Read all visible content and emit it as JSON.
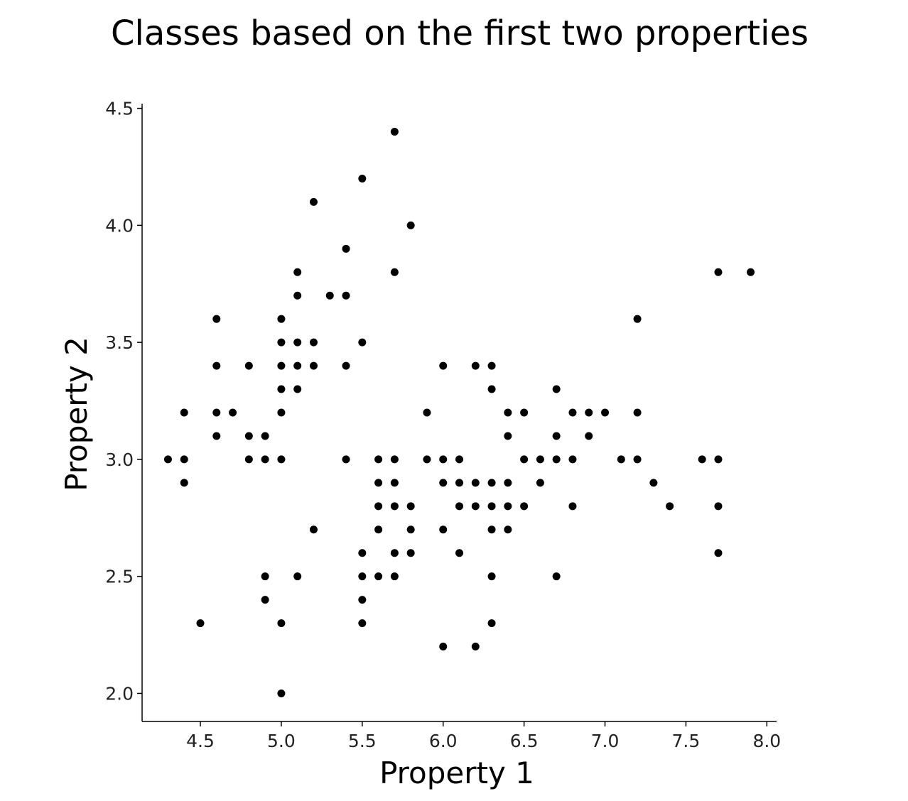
{
  "chart_data": {
    "type": "scatter",
    "title": "Classes based on the first two properties",
    "xlabel": "Property 1",
    "ylabel": "Property 2",
    "xlim": [
      4.14,
      8.06
    ],
    "ylim": [
      1.88,
      4.52
    ],
    "xticks": [
      "4.5",
      "5.0",
      "5.5",
      "6.0",
      "6.5",
      "7.0",
      "7.5",
      "8.0"
    ],
    "yticks": [
      "2.0",
      "2.5",
      "3.0",
      "3.5",
      "4.0",
      "4.5"
    ],
    "grid": false,
    "colors": {
      "points": "#000000",
      "axes": "#000000"
    },
    "series": [
      {
        "x": [
          5.7,
          5.5,
          5.2,
          5.8,
          5.4,
          5.1,
          5.7,
          7.7,
          7.9,
          5.1,
          5.3,
          5.4,
          4.6,
          5.0,
          7.2,
          5.0,
          5.1,
          5.2,
          5.5,
          4.6,
          4.8,
          5.0,
          5.1,
          5.2,
          5.4,
          6.0,
          6.2,
          6.3,
          5.0,
          5.1,
          6.3,
          6.7,
          4.4,
          4.6,
          4.7,
          5.0,
          5.9,
          6.4,
          6.5,
          6.8,
          6.9,
          7.0,
          7.2,
          4.6,
          4.8,
          4.9,
          6.4,
          6.7,
          6.9,
          4.3,
          4.4,
          4.8,
          4.9,
          5.0,
          5.4,
          5.6,
          5.7,
          5.9,
          6.0,
          6.1,
          6.5,
          6.6,
          6.7,
          6.8,
          7.1,
          7.2,
          7.6,
          7.7,
          4.4,
          5.6,
          5.7,
          6.0,
          6.1,
          6.2,
          6.3,
          6.4,
          6.6,
          7.3,
          5.6,
          5.7,
          5.8,
          6.1,
          6.2,
          6.3,
          6.4,
          6.5,
          6.8,
          7.4,
          7.7,
          5.2,
          5.6,
          5.8,
          6.0,
          6.3,
          6.4,
          5.5,
          5.7,
          5.8,
          6.1,
          7.7,
          4.9,
          5.1,
          5.5,
          5.6,
          5.7,
          6.3,
          6.7,
          4.9,
          5.5,
          4.5,
          5.0,
          5.5,
          6.3,
          6.0,
          6.2,
          5.0
        ],
        "y": [
          4.4,
          4.2,
          4.1,
          4.0,
          3.9,
          3.8,
          3.8,
          3.8,
          3.8,
          3.7,
          3.7,
          3.7,
          3.6,
          3.6,
          3.6,
          3.5,
          3.5,
          3.5,
          3.5,
          3.4,
          3.4,
          3.4,
          3.4,
          3.4,
          3.4,
          3.4,
          3.4,
          3.4,
          3.3,
          3.3,
          3.3,
          3.3,
          3.2,
          3.2,
          3.2,
          3.2,
          3.2,
          3.2,
          3.2,
          3.2,
          3.2,
          3.2,
          3.2,
          3.1,
          3.1,
          3.1,
          3.1,
          3.1,
          3.1,
          3.0,
          3.0,
          3.0,
          3.0,
          3.0,
          3.0,
          3.0,
          3.0,
          3.0,
          3.0,
          3.0,
          3.0,
          3.0,
          3.0,
          3.0,
          3.0,
          3.0,
          3.0,
          3.0,
          2.9,
          2.9,
          2.9,
          2.9,
          2.9,
          2.9,
          2.9,
          2.9,
          2.9,
          2.9,
          2.8,
          2.8,
          2.8,
          2.8,
          2.8,
          2.8,
          2.8,
          2.8,
          2.8,
          2.8,
          2.8,
          2.7,
          2.7,
          2.7,
          2.7,
          2.7,
          2.7,
          2.6,
          2.6,
          2.6,
          2.6,
          2.6,
          2.5,
          2.5,
          2.5,
          2.5,
          2.5,
          2.5,
          2.5,
          2.4,
          2.4,
          2.3,
          2.3,
          2.3,
          2.3,
          2.2,
          2.2,
          2.0
        ]
      }
    ]
  }
}
